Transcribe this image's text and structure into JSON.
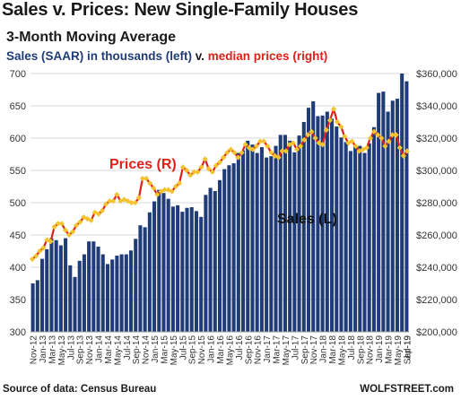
{
  "title": "Sales v. Prices: New Single-Family  Houses",
  "subtitle": "3-Month Moving Average",
  "legend_line": {
    "part1": "Sales (SAAR) in thousands (left)",
    "part2": " v. ",
    "part3": "median prices (right)"
  },
  "footer": {
    "source": "Source of data: Census Bureau",
    "brand": "WOLFSTREET.com"
  },
  "colors": {
    "bars": "#1f3c78",
    "line": "#e0201b",
    "markers": "#f4c430",
    "grid": "#d9d9d9"
  },
  "chart_data": {
    "type": "bar",
    "annotations": [
      "Prices (R)",
      "Sales (L)"
    ],
    "x_tick_labels": [
      "Nov-12",
      "Jan-13",
      "Mar-13",
      "May-13",
      "Jul-13",
      "Sep-13",
      "Nov-13",
      "Jan-14",
      "Mar-14",
      "May-14",
      "Jul-14",
      "Sep-14",
      "Nov-14",
      "Jan-15",
      "Mar-15",
      "May-15",
      "Jul-15",
      "Sep-15",
      "Nov-15",
      "Jan-16",
      "Mar-16",
      "May-16",
      "Jul-16",
      "Sep-16",
      "Nov-16",
      "Jan-17",
      "Mar-17",
      "May-17",
      "Jul-17",
      "Sep-17",
      "Nov-17",
      "Jan-18",
      "Mar-18",
      "May-18",
      "Jul-18",
      "Sep-18",
      "Nov-18",
      "Jan-19",
      "Mar-19",
      "May-19",
      "Jul-19",
      "Sep-19"
    ],
    "y_left": {
      "label": "Sales (SAAR) in thousands",
      "ticks": [
        300,
        350,
        400,
        450,
        500,
        550,
        600,
        650,
        700
      ],
      "lim": [
        300,
        700
      ]
    },
    "y_right": {
      "label": "median prices",
      "ticks": [
        "$200,000",
        "$220,000",
        "$240,000",
        "$260,000",
        "$280,000",
        "$300,000",
        "$320,000",
        "$340,000",
        "$360,000"
      ],
      "lim": [
        200000,
        360000
      ]
    },
    "series": [
      {
        "name": "Sales (L)",
        "axis": "left",
        "type": "bar",
        "values": [
          375,
          380,
          413,
          428,
          445,
          442,
          434,
          445,
          403,
          385,
          410,
          420,
          440,
          440,
          432,
          420,
          405,
          412,
          418,
          420,
          420,
          426,
          444,
          465,
          462,
          485,
          502,
          520,
          515,
          506,
          494,
          496,
          486,
          492,
          493,
          487,
          478,
          512,
          523,
          518,
          535,
          552,
          558,
          561,
          577,
          581,
          596,
          590,
          577,
          586,
          570,
          572,
          588,
          605,
          605,
          596,
          578,
          604,
          625,
          647,
          657,
          634,
          635,
          641,
          630,
          618,
          601,
          594,
          580,
          590,
          588,
          577,
          592,
          617,
          670,
          672,
          641,
          658,
          661,
          700,
          688
        ]
      },
      {
        "name": "Prices (R)",
        "axis": "right",
        "type": "line",
        "values": [
          245,
          247,
          250,
          252,
          257,
          256,
          265,
          267,
          267,
          263,
          260,
          262,
          266,
          268,
          271,
          270,
          269,
          274,
          273,
          275,
          279,
          281,
          281,
          285,
          281,
          282,
          281,
          280,
          280,
          283,
          295,
          295,
          292,
          289,
          285,
          287,
          288,
          288,
          287,
          290,
          292,
          302,
          300,
          297,
          299,
          299,
          302,
          307,
          301,
          299,
          303,
          305,
          308,
          311,
          313,
          311,
          308,
          311,
          316,
          314,
          313,
          315,
          318,
          318,
          315,
          311,
          309,
          308,
          312,
          312,
          316,
          317,
          313,
          315,
          319,
          322,
          324,
          320,
          317,
          316,
          325,
          331,
          338,
          330,
          327,
          321,
          317,
          318,
          315,
          312,
          313,
          314,
          320,
          324,
          322,
          320,
          315,
          318,
          322,
          322,
          314,
          309,
          312
        ]
      }
    ],
    "grid": true
  }
}
